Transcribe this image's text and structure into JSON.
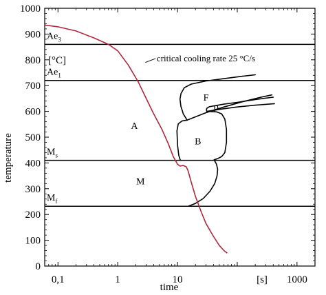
{
  "chart_data": {
    "type": "line",
    "title": "",
    "xlabel": "time",
    "xunit": "[s]",
    "ylabel": "temperature",
    "yunit": "[°C]",
    "x_scale": "log",
    "xlim": [
      0.06,
      2000
    ],
    "ylim": [
      0,
      1000
    ],
    "x_ticks": [
      {
        "value": 0.1,
        "label": "0,1"
      },
      {
        "value": 1,
        "label": "1"
      },
      {
        "value": 10,
        "label": "10"
      },
      {
        "value": 1000,
        "label": "1000"
      }
    ],
    "y_ticks": [
      0,
      100,
      200,
      300,
      400,
      500,
      600,
      700,
      800,
      900,
      1000
    ],
    "grid": false,
    "reference_lines": [
      {
        "name": "Ae3",
        "label_main": "Ae",
        "label_sub": "3",
        "y": 860
      },
      {
        "name": "Ae1",
        "label_main": "Ae",
        "label_sub": "1",
        "y": 720
      },
      {
        "name": "Ms",
        "label_main": "M",
        "label_sub": "s",
        "y": 410
      },
      {
        "name": "Mf",
        "label_main": "M",
        "label_sub": "f",
        "y": 232
      }
    ],
    "cooling_curve": {
      "label": "critical cooling rate 25 °C/s",
      "color": "#b0263c",
      "x": [
        0.06,
        0.1,
        0.2,
        0.4,
        0.7,
        1.0,
        1.5,
        2.2,
        3.0,
        4.0,
        5.5,
        7.0,
        8.5,
        10.0,
        11.0,
        12.5,
        14.0,
        15.0,
        17.0,
        20.0,
        25.0,
        30.0,
        40.0,
        50.0,
        60.0,
        68.0
      ],
      "y": [
        935,
        928,
        912,
        885,
        860,
        835,
        780,
        715,
        650,
        590,
        530,
        475,
        425,
        395,
        388,
        390,
        385,
        370,
        325,
        270,
        210,
        165,
        115,
        80,
        60,
        50
      ]
    },
    "regions": [
      {
        "label": "A",
        "x": 1.9,
        "y": 545
      },
      {
        "label": "B",
        "x": 22,
        "y": 485
      },
      {
        "label": "M",
        "x": 2.4,
        "y": 330
      },
      {
        "label": "F",
        "x": 30,
        "y": 655
      },
      {
        "label": "P",
        "x": 44,
        "y": 612
      }
    ],
    "boundaries": {
      "ferrite_start": {
        "x": [
          200,
          120,
          60,
          30,
          17,
          13,
          11.5,
          11,
          11.4,
          12.5,
          14.5
        ],
        "y": [
          742,
          736,
          727,
          718,
          706,
          692,
          670,
          648,
          620,
          590,
          566
        ]
      },
      "ferrite_end": {
        "x": [
          14.5,
          30,
          60,
          120,
          250,
          380
        ],
        "y": [
          566,
          595,
          617,
          637,
          655,
          664
        ]
      },
      "pearlite_start": {
        "x": [
          400,
          200,
          100,
          60,
          42,
          34,
          31,
          30.5,
          31
        ],
        "y": [
          655,
          646,
          635,
          628,
          622,
          618,
          612,
          606,
          600
        ]
      },
      "pearlite_end": {
        "x": [
          31,
          55,
          100,
          200,
          420
        ],
        "y": [
          600,
          609,
          617,
          624,
          630
        ]
      },
      "bainite_start": {
        "x": [
          31,
          45,
          55,
          62,
          66,
          66,
          62,
          55,
          48,
          41
        ],
        "y": [
          600,
          598,
          590,
          570,
          530,
          480,
          440,
          425,
          418,
          412
        ]
      },
      "bainite_cap": {
        "x": [
          14.5,
          12,
          10.3,
          9.8,
          10,
          10.5,
          11.2
        ],
        "y": [
          566,
          563,
          552,
          525,
          470,
          430,
          410
        ]
      },
      "bainite_end": {
        "x": [
          41,
          45,
          47,
          46,
          42,
          35,
          27,
          20,
          15.5
        ],
        "y": [
          412,
          395,
          375,
          350,
          320,
          290,
          262,
          243,
          233
        ]
      }
    }
  }
}
